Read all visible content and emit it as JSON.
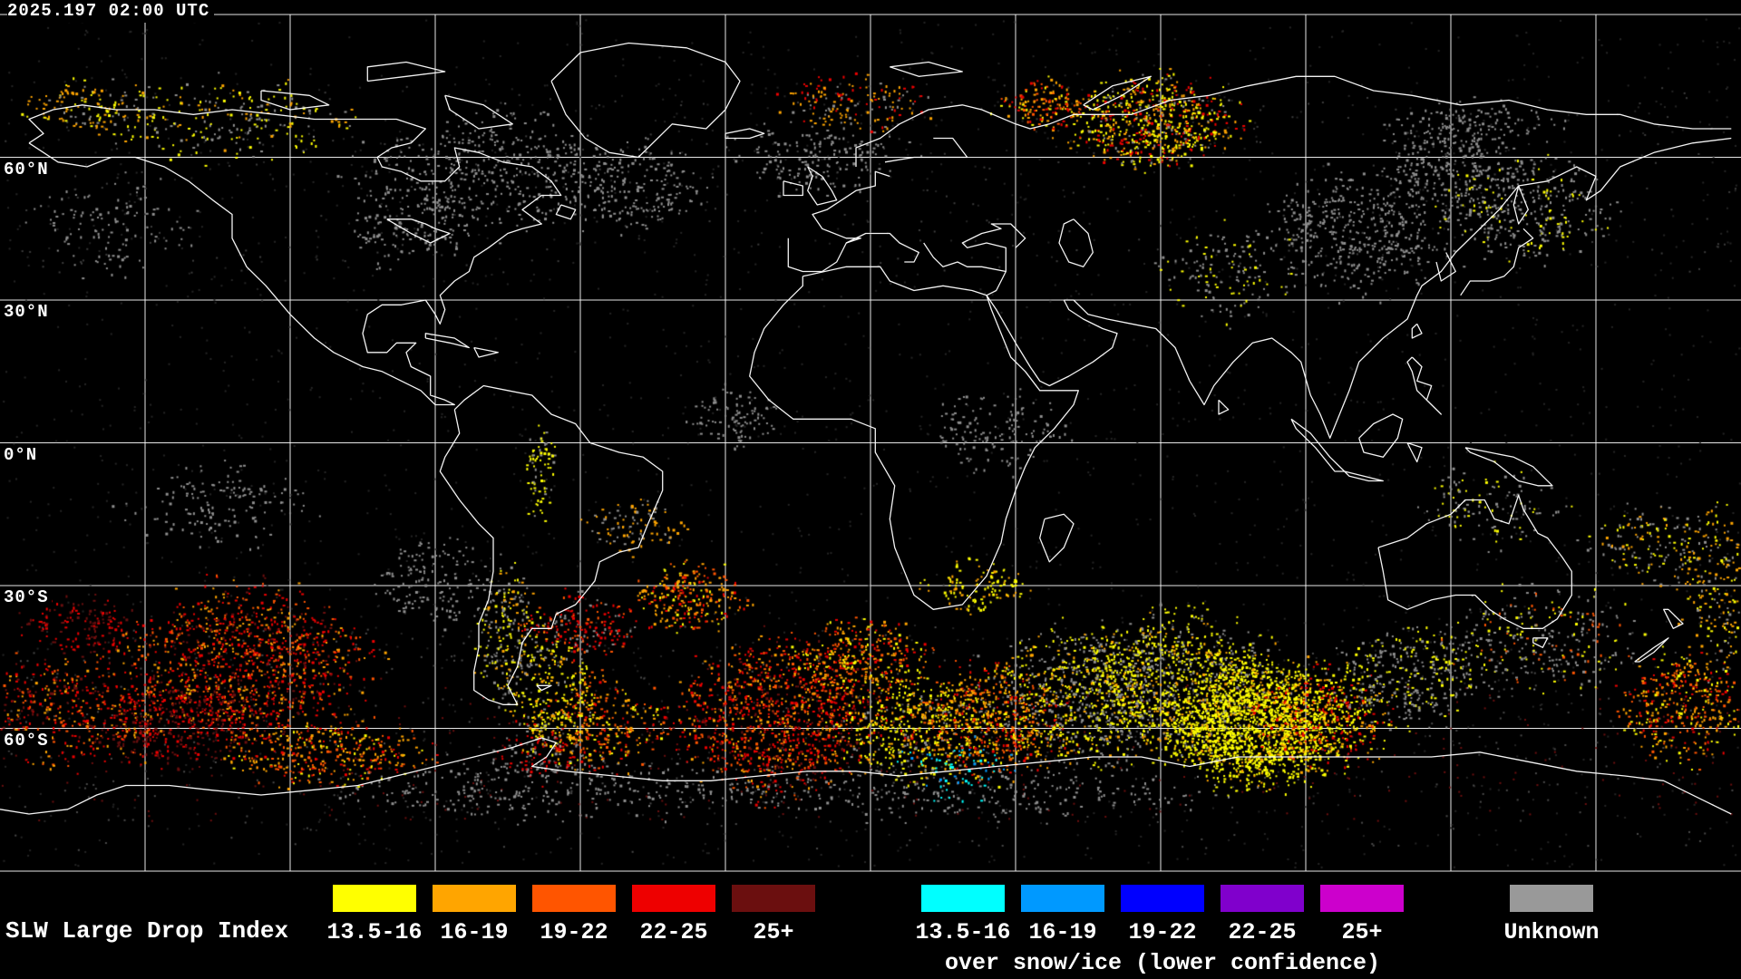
{
  "header": {
    "timestamp": "2025.197 02:00 UTC"
  },
  "map": {
    "latitude_labels": [
      {
        "label": "60°N"
      },
      {
        "label": "30°N"
      },
      {
        "label": "0°N"
      },
      {
        "label": "30°S"
      },
      {
        "label": "60°S"
      }
    ]
  },
  "legend": {
    "title": "SLW Large Drop Index",
    "liquid_bins": [
      {
        "label": "13.5-16",
        "color": "#ffff00"
      },
      {
        "label": "16-19",
        "color": "#ffa500"
      },
      {
        "label": "19-22",
        "color": "#ff5500"
      },
      {
        "label": "22-25",
        "color": "#ee0000"
      },
      {
        "label": "25+",
        "color": "#6b0f0f"
      }
    ],
    "snow_ice_bins": [
      {
        "label": "13.5-16",
        "color": "#00ffff"
      },
      {
        "label": "16-19",
        "color": "#0099ff"
      },
      {
        "label": "19-22",
        "color": "#0000ff"
      },
      {
        "label": "22-25",
        "color": "#8000cc"
      },
      {
        "label": "25+",
        "color": "#cc00cc"
      }
    ],
    "snow_ice_caption": "over snow/ice (lower confidence)",
    "unknown": {
      "label": "Unknown",
      "color": "#999999"
    }
  },
  "colors": {
    "background": "#000000",
    "coastline": "#ffffff",
    "grid": "#ffffff",
    "text": "#ffffff"
  }
}
